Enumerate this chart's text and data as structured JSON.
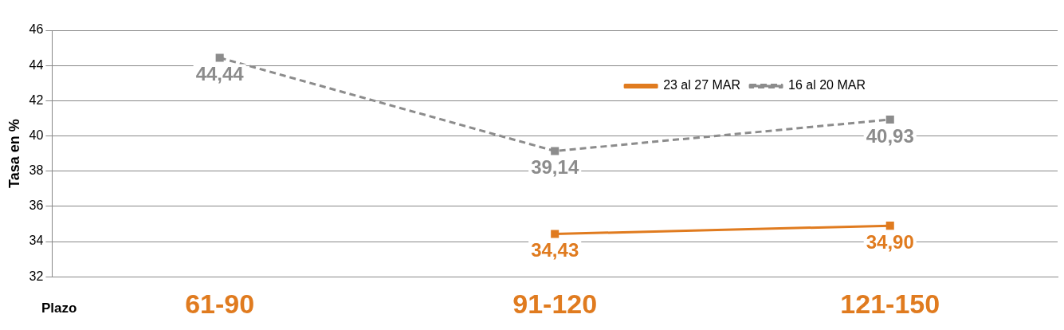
{
  "chart_data": {
    "type": "line",
    "xlabel": "Plazo",
    "ylabel": "Tasa en %",
    "categories": [
      "61-90",
      "91-120",
      "121-150"
    ],
    "series": [
      {
        "name": "23 al 27 MAR",
        "color": "#e07b1f",
        "values": [
          null,
          34.43,
          34.9
        ],
        "value_labels": [
          null,
          "34,43",
          "34,90"
        ],
        "line_style": "solid"
      },
      {
        "name": "16 al 20 MAR",
        "color": "#8c8c8c",
        "values": [
          44.44,
          39.14,
          40.93
        ],
        "value_labels": [
          "44,44",
          "39,14",
          "40,93"
        ],
        "line_style": "dashed"
      }
    ],
    "ylim": [
      32,
      46
    ],
    "yticks": [
      32,
      34,
      36,
      38,
      40,
      42,
      44,
      46
    ],
    "grid": "y",
    "legend": "top right",
    "marker": "square"
  }
}
